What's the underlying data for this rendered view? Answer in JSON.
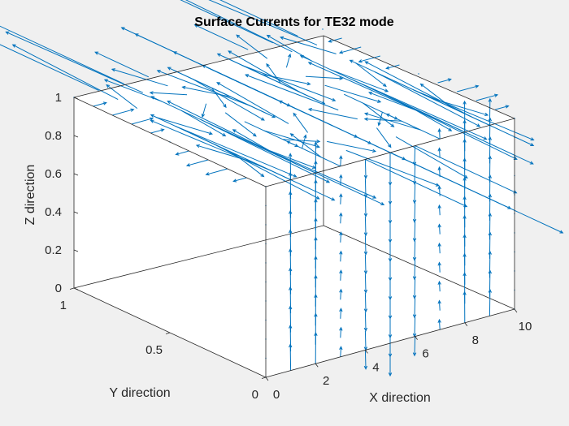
{
  "figure": {
    "background": "#f0f0f0",
    "axes_color": "#262626",
    "arrow_color": "#0072bd"
  },
  "chart_data": {
    "type": "quiver3",
    "title": "Surface Currents for TE32 mode",
    "xlabel": "X direction",
    "ylabel": "Y direction",
    "zlabel": "Z direction",
    "xlim": [
      0,
      10
    ],
    "ylim": [
      0,
      1
    ],
    "zlim": [
      0,
      1
    ],
    "xticks": [
      0,
      2,
      4,
      6,
      8,
      10
    ],
    "yticks": [
      0,
      0.5,
      1
    ],
    "zticks": [
      0,
      0.2,
      0.4,
      0.6,
      0.8,
      1
    ],
    "xtick_labels": [
      "0",
      "2",
      "4",
      "6",
      "8",
      "10"
    ],
    "ytick_labels": [
      "0",
      "0.5",
      "1"
    ],
    "ztick_labels": [
      "0",
      "0.2",
      "0.4",
      "0.6",
      "0.8",
      "1"
    ],
    "grid": false,
    "box": true,
    "mode": {
      "m": 3,
      "n": 2
    },
    "surfaces": [
      "top (z = 1)",
      "front wall (y = 0)"
    ]
  }
}
